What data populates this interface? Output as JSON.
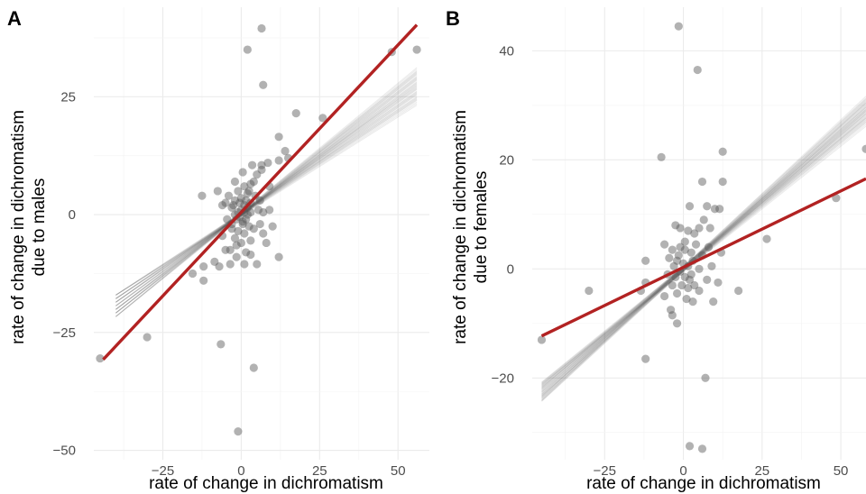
{
  "chart_data": [
    {
      "type": "scatter",
      "panel_label": "A",
      "xlabel": "rate of change in dichromatism",
      "ylabel_lines": [
        "rate of change in dichromatism",
        "due to males"
      ],
      "xlim": [
        -47,
        60
      ],
      "ylim": [
        -52,
        44
      ],
      "x_ticks": [
        -25,
        0,
        25,
        50
      ],
      "x_tick_labels": [
        "−25",
        "0",
        "25",
        "50"
      ],
      "y_ticks": [
        -50,
        -25,
        0,
        25
      ],
      "y_tick_labels": [
        "−50",
        "−25",
        "0",
        "25"
      ],
      "grid": true,
      "colors": {
        "points": "#555555",
        "fit_line": "#b22222",
        "posterior_lines": "#222222"
      },
      "fit_line": {
        "intercept": 0.5,
        "slope": 0.71,
        "x_range": [
          -44,
          56
        ]
      },
      "posterior_lines": {
        "count": 40,
        "intercept_range": [
          -0.3,
          0.5
        ],
        "slope_range": [
          0.42,
          0.55
        ],
        "x_range": [
          -40,
          56
        ]
      },
      "points": [
        [
          6.5,
          39.5
        ],
        [
          2,
          35
        ],
        [
          48,
          34.5
        ],
        [
          56,
          35
        ],
        [
          7,
          27.5
        ],
        [
          26,
          20.5
        ],
        [
          17.5,
          21.5
        ],
        [
          12,
          16.5
        ],
        [
          14,
          13.5
        ],
        [
          15,
          12
        ],
        [
          8.5,
          11
        ],
        [
          12,
          11.5
        ],
        [
          6.5,
          10.5
        ],
        [
          6.5,
          9.5
        ],
        [
          5,
          8.5
        ],
        [
          3,
          6.5
        ],
        [
          2.5,
          5
        ],
        [
          4.5,
          4
        ],
        [
          1.5,
          3
        ],
        [
          3,
          2.5
        ],
        [
          2,
          1.5
        ],
        [
          0,
          1
        ],
        [
          1,
          0.5
        ],
        [
          -0.5,
          -0.5
        ],
        [
          1.5,
          -1
        ],
        [
          0.5,
          -2
        ],
        [
          -1.5,
          -1
        ],
        [
          -2,
          0
        ],
        [
          -3,
          1.5
        ],
        [
          -2,
          3
        ],
        [
          -1,
          5
        ],
        [
          -4,
          4
        ],
        [
          -5,
          2.5
        ],
        [
          -3,
          -3
        ],
        [
          -2,
          -5
        ],
        [
          0,
          -6
        ],
        [
          -3.5,
          -7.5
        ],
        [
          -1.5,
          -9
        ],
        [
          1.5,
          -8
        ],
        [
          3,
          -5.5
        ],
        [
          4,
          -3
        ],
        [
          6,
          -2
        ],
        [
          7,
          0.5
        ],
        [
          6,
          3
        ],
        [
          9,
          1
        ],
        [
          8,
          -6
        ],
        [
          12,
          -9
        ],
        [
          5,
          -10.5
        ],
        [
          -5,
          -7.5
        ],
        [
          -7,
          -11
        ],
        [
          -8.5,
          -10
        ],
        [
          -3.5,
          -10.5
        ],
        [
          1,
          -10.5
        ],
        [
          -12.5,
          4
        ],
        [
          -7.5,
          5
        ],
        [
          -12,
          -11
        ],
        [
          -12,
          -14
        ],
        [
          -15.5,
          -12.5
        ],
        [
          -30,
          -26
        ],
        [
          -45,
          -30.5
        ],
        [
          -6.5,
          -27.5
        ],
        [
          4,
          -32.5
        ],
        [
          -1,
          -46
        ],
        [
          -6,
          2
        ],
        [
          -2,
          7
        ],
        [
          0.5,
          9
        ],
        [
          3.5,
          10.5
        ],
        [
          9,
          6
        ],
        [
          10,
          -2.5
        ],
        [
          7,
          -4
        ],
        [
          3,
          -8.5
        ],
        [
          -1,
          -3.5
        ],
        [
          1,
          -4
        ],
        [
          -4.5,
          -1
        ],
        [
          -6,
          -4.5
        ],
        [
          2,
          4.5
        ],
        [
          5.5,
          1
        ],
        [
          -2.5,
          2
        ],
        [
          0,
          3.5
        ],
        [
          2.5,
          -2.5
        ],
        [
          -0.5,
          2.5
        ],
        [
          1,
          6
        ],
        [
          4,
          7
        ],
        [
          -1.5,
          -6.5
        ],
        [
          0.5,
          -1.5
        ],
        [
          2,
          0
        ],
        [
          -1,
          0.5
        ],
        [
          1,
          2
        ],
        [
          3,
          0.5
        ],
        [
          -3,
          -2
        ]
      ]
    },
    {
      "type": "scatter",
      "panel_label": "B",
      "xlabel": "rate of change in dichromatism",
      "ylabel_lines": [
        "rate of change in dichromatism",
        "due to females"
      ],
      "xlim": [
        -48,
        58
      ],
      "ylim": [
        -35,
        48
      ],
      "x_ticks": [
        -25,
        0,
        25,
        50
      ],
      "x_tick_labels": [
        "−25",
        "0",
        "25",
        "50"
      ],
      "y_ticks": [
        -20,
        0,
        20,
        40
      ],
      "y_tick_labels": [
        "−20",
        "0",
        "20",
        "40"
      ],
      "grid": true,
      "colors": {
        "points": "#555555",
        "fit_line": "#b22222",
        "posterior_lines": "#222222"
      },
      "fit_line": {
        "intercept": 0.3,
        "slope": 0.28,
        "x_range": [
          -45,
          58
        ]
      },
      "posterior_lines": {
        "count": 40,
        "intercept_range": [
          -0.5,
          0.5
        ],
        "slope_range": [
          0.46,
          0.54
        ],
        "x_range": [
          -45,
          58
        ]
      },
      "points": [
        [
          -1.5,
          44.5
        ],
        [
          4.5,
          36.5
        ],
        [
          -7,
          20.5
        ],
        [
          12.5,
          21.5
        ],
        [
          12.5,
          16
        ],
        [
          58,
          22
        ],
        [
          6,
          16
        ],
        [
          48.5,
          13
        ],
        [
          26.5,
          5.5
        ],
        [
          10,
          11
        ],
        [
          11.5,
          11
        ],
        [
          7.5,
          11.5
        ],
        [
          2,
          11.5
        ],
        [
          6.5,
          9
        ],
        [
          8.5,
          7.5
        ],
        [
          -2.5,
          8
        ],
        [
          5,
          7.5
        ],
        [
          3.5,
          6.5
        ],
        [
          1.5,
          7
        ],
        [
          0.5,
          5
        ],
        [
          -1,
          4
        ],
        [
          2.5,
          3
        ],
        [
          -3.5,
          3.5
        ],
        [
          -4.5,
          2
        ],
        [
          -2,
          1.5
        ],
        [
          0,
          1
        ],
        [
          1.5,
          0.5
        ],
        [
          3,
          1.5
        ],
        [
          -1,
          -0.5
        ],
        [
          0.5,
          -1.5
        ],
        [
          2.5,
          -1
        ],
        [
          -2.5,
          -1.5
        ],
        [
          -3.5,
          -3
        ],
        [
          -2,
          -4.5
        ],
        [
          1,
          -5.5
        ],
        [
          3,
          -6
        ],
        [
          5,
          -4
        ],
        [
          7.5,
          -2
        ],
        [
          9,
          0.5
        ],
        [
          12,
          3
        ],
        [
          9.5,
          -6
        ],
        [
          17.5,
          -4
        ],
        [
          -4,
          -7.5
        ],
        [
          -3.5,
          -8.5
        ],
        [
          -2,
          -10
        ],
        [
          -12,
          -2.5
        ],
        [
          -13.5,
          -4
        ],
        [
          -12,
          1.5
        ],
        [
          -30,
          -4
        ],
        [
          -45,
          -13
        ],
        [
          -12,
          -16.5
        ],
        [
          7,
          -20
        ],
        [
          2,
          -32.5
        ],
        [
          6,
          -33
        ],
        [
          -6,
          4.5
        ],
        [
          -1,
          7.5
        ],
        [
          4,
          4.5
        ],
        [
          6,
          2.5
        ],
        [
          -0.5,
          -3
        ],
        [
          1.5,
          -3.5
        ],
        [
          -5,
          -1
        ],
        [
          5,
          0
        ],
        [
          -1.5,
          2.5
        ],
        [
          0.5,
          3.5
        ],
        [
          2,
          -2
        ],
        [
          -3,
          0.5
        ],
        [
          3.5,
          -3
        ],
        [
          8,
          4
        ],
        [
          -6,
          -5
        ],
        [
          11,
          -2.5
        ]
      ]
    }
  ]
}
